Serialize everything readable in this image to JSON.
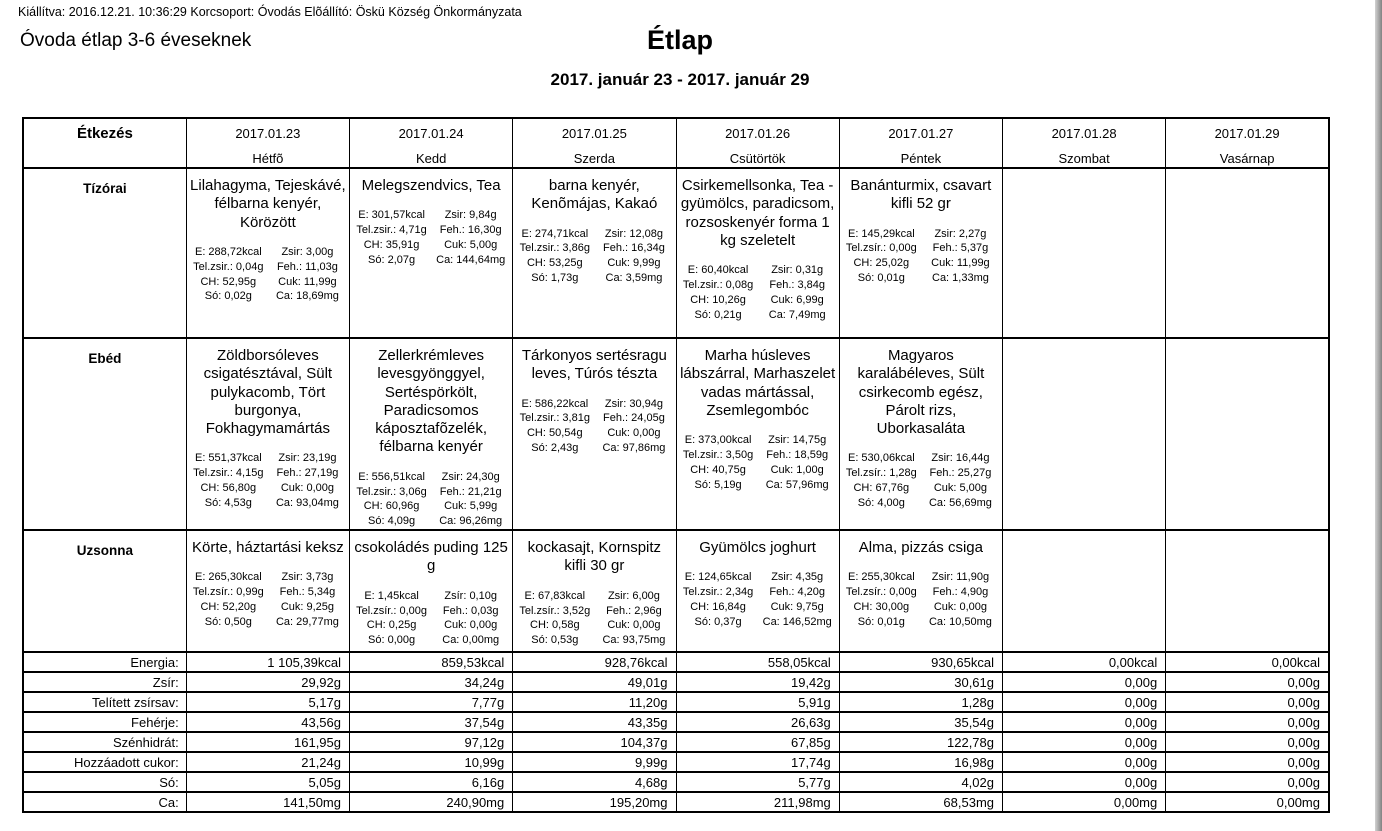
{
  "page": {
    "meta_line": "Kiállítva: 2016.12.21. 10:36:29 Korcsoport: Óvodás Elõállító: Öskü Község Önkormányzata",
    "left_title": "Óvoda étlap 3-6 éveseknek",
    "title": "Étlap",
    "date_range": "2017. január 23 - 2017. január 29"
  },
  "table": {
    "corner_header": "Étkezés",
    "days": [
      {
        "date": "2017.01.23",
        "weekday": "Hétfõ"
      },
      {
        "date": "2017.01.24",
        "weekday": "Kedd"
      },
      {
        "date": "2017.01.25",
        "weekday": "Szerda"
      },
      {
        "date": "2017.01.26",
        "weekday": "Csütörtök"
      },
      {
        "date": "2017.01.27",
        "weekday": "Péntek"
      },
      {
        "date": "2017.01.28",
        "weekday": "Szombat"
      },
      {
        "date": "2017.01.29",
        "weekday": "Vasárnap"
      }
    ],
    "meal_rows": [
      {
        "label": "Tízórai",
        "cells": [
          {
            "name": "Lilahagyma, Tejeskávé, félbarna kenyér, Körözött",
            "nutrition": [
              [
                "E: 288,72kcal",
                "Zsir: 3,00g"
              ],
              [
                "Tel.zsir.: 0,04g",
                "Feh.: 11,03g"
              ],
              [
                "CH: 52,95g",
                "Cuk: 11,99g"
              ],
              [
                "Só: 0,02g",
                "Ca: 18,69mg"
              ]
            ]
          },
          {
            "name": "Melegszendvics, Tea",
            "nutrition": [
              [
                "E: 301,57kcal",
                "Zsir: 9,84g"
              ],
              [
                "Tel.zsir.: 4,71g",
                "Feh.: 16,30g"
              ],
              [
                "CH: 35,91g",
                "Cuk: 5,00g"
              ],
              [
                "Só: 2,07g",
                "Ca: 144,64mg"
              ]
            ]
          },
          {
            "name": "barna kenyér, Kenõmájas, Kakaó",
            "nutrition": [
              [
                "E: 274,71kcal",
                "Zsir: 12,08g"
              ],
              [
                "Tel.zsir.: 3,86g",
                "Feh.: 16,34g"
              ],
              [
                "CH: 53,25g",
                "Cuk: 9,99g"
              ],
              [
                "Só: 1,73g",
                "Ca: 3,59mg"
              ]
            ]
          },
          {
            "name": "Csirkemellsonka, Tea - gyümölcs, paradicsom, rozsoskenyér forma 1 kg szeletelt",
            "nutrition": [
              [
                "E: 60,40kcal",
                "Zsir: 0,31g"
              ],
              [
                "Tel.zsir.: 0,08g",
                "Feh.: 3,84g"
              ],
              [
                "CH: 10,26g",
                "Cuk: 6,99g"
              ],
              [
                "Só: 0,21g",
                "Ca: 7,49mg"
              ]
            ]
          },
          {
            "name": "Banánturmix, csavart kifli 52 gr",
            "nutrition": [
              [
                "E: 145,29kcal",
                "Zsir: 2,27g"
              ],
              [
                "Tel.zsír.: 0,00g",
                "Feh.: 5,37g"
              ],
              [
                "CH: 25,02g",
                "Cuk: 11,99g"
              ],
              [
                "Só: 0,01g",
                "Ca: 1,33mg"
              ]
            ]
          },
          null,
          null
        ]
      },
      {
        "label": "Ebéd",
        "cells": [
          {
            "name": "Zöldborsóleves csigatésztával, Sült pulykacomb, Tört burgonya, Fokhagymamártás",
            "nutrition": [
              [
                "E: 551,37kcal",
                "Zsir: 23,19g"
              ],
              [
                "Tel.zsir.: 4,15g",
                "Feh.: 27,19g"
              ],
              [
                "CH: 56,80g",
                "Cuk: 0,00g"
              ],
              [
                "Só: 4,53g",
                "Ca: 93,04mg"
              ]
            ]
          },
          {
            "name": "Zellerkrémleves levesgyönggyel, Sertéspörkölt, Paradicsomos káposztafõzelék, félbarna kenyér",
            "nutrition": [
              [
                "E: 556,51kcal",
                "Zsir: 24,30g"
              ],
              [
                "Tel.zsir.: 3,06g",
                "Feh.: 21,21g"
              ],
              [
                "CH: 60,96g",
                "Cuk: 5,99g"
              ],
              [
                "Só: 4,09g",
                "Ca: 96,26mg"
              ]
            ]
          },
          {
            "name": "Tárkonyos sertésragu leves, Túrós tészta",
            "nutrition": [
              [
                "E: 586,22kcal",
                "Zsir: 30,94g"
              ],
              [
                "Tel.zsir.: 3,81g",
                "Feh.: 24,05g"
              ],
              [
                "CH: 50,54g",
                "Cuk: 0,00g"
              ],
              [
                "Só: 2,43g",
                "Ca: 97,86mg"
              ]
            ]
          },
          {
            "name": "Marha húsleves lábszárral, Marhaszelet vadas mártással, Zsemlegombóc",
            "nutrition": [
              [
                "E: 373,00kcal",
                "Zsir: 14,75g"
              ],
              [
                "Tel.zsir.: 3,50g",
                "Feh.: 18,59g"
              ],
              [
                "CH: 40,75g",
                "Cuk: 1,00g"
              ],
              [
                "Só: 5,19g",
                "Ca: 57,96mg"
              ]
            ]
          },
          {
            "name": "Magyaros karalábéleves, Sült csirkecomb egész, Párolt rizs, Uborkasaláta",
            "nutrition": [
              [
                "E: 530,06kcal",
                "Zsir: 16,44g"
              ],
              [
                "Tel.zsír.: 1,28g",
                "Feh.: 25,27g"
              ],
              [
                "CH: 67,76g",
                "Cuk: 5,00g"
              ],
              [
                "Só: 4,00g",
                "Ca: 56,69mg"
              ]
            ]
          },
          null,
          null
        ]
      },
      {
        "label": "Uzsonna",
        "cells": [
          {
            "name": "Körte, háztartási keksz",
            "nutrition": [
              [
                "E: 265,30kcal",
                "Zsir: 3,73g"
              ],
              [
                "Tel.zsír.: 0,99g",
                "Feh.: 5,34g"
              ],
              [
                "CH: 52,20g",
                "Cuk: 9,25g"
              ],
              [
                "Só: 0,50g",
                "Ca: 29,77mg"
              ]
            ]
          },
          {
            "name": "csokoládés puding 125  g",
            "nutrition": [
              [
                "E: 1,45kcal",
                "Zsír: 0,10g"
              ],
              [
                "Tel.zsír.: 0,00g",
                "Feh.: 0,03g"
              ],
              [
                "CH: 0,25g",
                "Cuk: 0,00g"
              ],
              [
                "Só: 0,00g",
                "Ca: 0,00mg"
              ]
            ]
          },
          {
            "name": "kockasajt, Kornspitz kifli 30 gr",
            "nutrition": [
              [
                "E: 67,83kcal",
                "Zsir: 6,00g"
              ],
              [
                "Tel.zsír.: 3,52g",
                "Feh.: 2,96g"
              ],
              [
                "CH: 0,58g",
                "Cuk: 0,00g"
              ],
              [
                "Só: 0,53g",
                "Ca: 93,75mg"
              ]
            ]
          },
          {
            "name": "Gyümölcs joghurt",
            "nutrition": [
              [
                "E: 124,65kcal",
                "Zsir: 4,35g"
              ],
              [
                "Tel.zsir.: 2,34g",
                "Feh.: 4,20g"
              ],
              [
                "CH: 16,84g",
                "Cuk: 9,75g"
              ],
              [
                "Só: 0,37g",
                "Ca: 146,52mg"
              ]
            ]
          },
          {
            "name": "Alma, pizzás csiga",
            "nutrition": [
              [
                "E: 255,30kcal",
                "Zsir: 11,90g"
              ],
              [
                "Tel.zsír.: 0,00g",
                "Feh.: 4,90g"
              ],
              [
                "CH: 30,00g",
                "Cuk: 0,00g"
              ],
              [
                "Só: 0,01g",
                "Ca: 10,50mg"
              ]
            ]
          },
          null,
          null
        ]
      }
    ],
    "summary_rows": [
      {
        "label": "Energia:",
        "values": [
          "1 105,39kcal",
          "859,53kcal",
          "928,76kcal",
          "558,05kcal",
          "930,65kcal",
          "0,00kcal",
          "0,00kcal"
        ]
      },
      {
        "label": "Zsír:",
        "values": [
          "29,92g",
          "34,24g",
          "49,01g",
          "19,42g",
          "30,61g",
          "0,00g",
          "0,00g"
        ]
      },
      {
        "label": "Telített zsírsav:",
        "values": [
          "5,17g",
          "7,77g",
          "11,20g",
          "5,91g",
          "1,28g",
          "0,00g",
          "0,00g"
        ]
      },
      {
        "label": "Fehérje:",
        "values": [
          "43,56g",
          "37,54g",
          "43,35g",
          "26,63g",
          "35,54g",
          "0,00g",
          "0,00g"
        ]
      },
      {
        "label": "Szénhidrát:",
        "values": [
          "161,95g",
          "97,12g",
          "104,37g",
          "67,85g",
          "122,78g",
          "0,00g",
          "0,00g"
        ]
      },
      {
        "label": "Hozzáadott cukor:",
        "values": [
          "21,24g",
          "10,99g",
          "9,99g",
          "17,74g",
          "16,98g",
          "0,00g",
          "0,00g"
        ]
      },
      {
        "label": "Só:",
        "values": [
          "5,05g",
          "6,16g",
          "4,68g",
          "5,77g",
          "4,02g",
          "0,00g",
          "0,00g"
        ]
      },
      {
        "label": "Ca:",
        "values": [
          "141,50mg",
          "240,90mg",
          "195,20mg",
          "211,98mg",
          "68,53mg",
          "0,00mg",
          "0,00mg"
        ]
      }
    ]
  }
}
